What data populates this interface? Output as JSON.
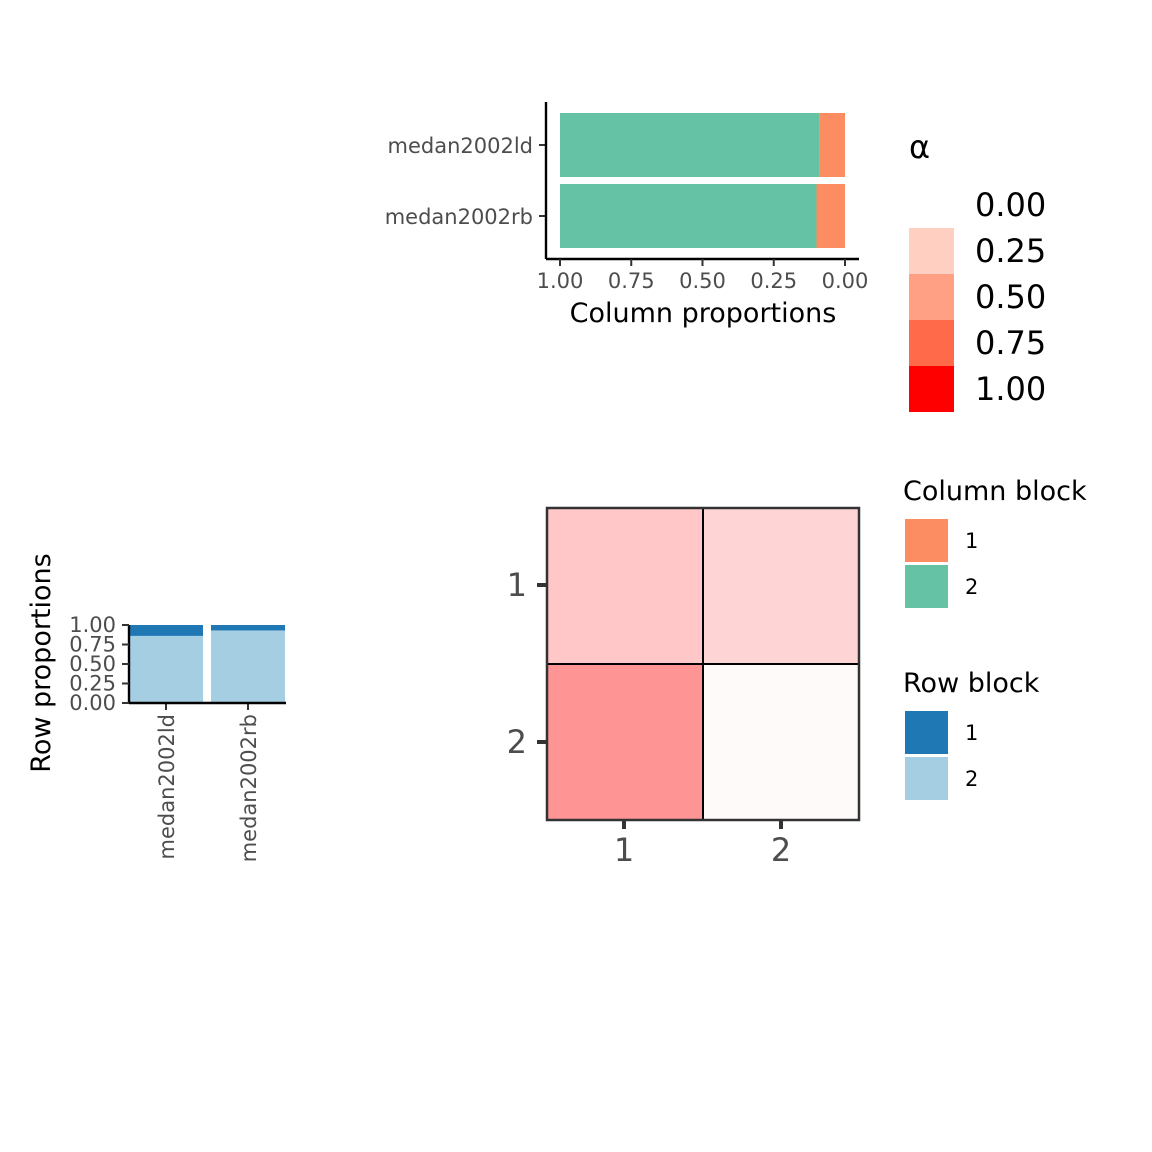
{
  "chart_data": [
    {
      "id": "column-proportions",
      "type": "bar",
      "orientation": "horizontal",
      "stacked": true,
      "categories": [
        "medan2002ld",
        "medan2002rb"
      ],
      "series": [
        {
          "name": "1",
          "values": [
            0.09,
            0.1
          ],
          "color": "#FC8D62"
        },
        {
          "name": "2",
          "values": [
            0.91,
            0.9
          ],
          "color": "#66C2A5"
        }
      ],
      "xlabel": "Column proportions",
      "xlim": [
        1.0,
        0.0
      ],
      "xticks": [
        "1.00",
        "0.75",
        "0.50",
        "0.25",
        "0.00"
      ],
      "xtick_values": [
        1.0,
        0.75,
        0.5,
        0.25,
        0.0
      ],
      "x_reversed": true
    },
    {
      "id": "row-proportions",
      "type": "bar",
      "orientation": "vertical",
      "stacked": true,
      "categories": [
        "medan2002ld",
        "medan2002rb"
      ],
      "series": [
        {
          "name": "2",
          "values": [
            0.86,
            0.93
          ],
          "color": "#A6CEE3"
        },
        {
          "name": "1",
          "values": [
            0.14,
            0.07
          ],
          "color": "#1F78B4"
        }
      ],
      "ylabel": "Row proportions",
      "ylim": [
        0,
        1
      ],
      "yticks": [
        "0.00",
        "0.25",
        "0.50",
        "0.75",
        "1.00"
      ],
      "ytick_values": [
        0,
        0.25,
        0.5,
        0.75,
        1.0
      ]
    },
    {
      "id": "alpha-heatmap",
      "type": "heatmap",
      "xcategories": [
        "1",
        "2"
      ],
      "ycategories": [
        "1",
        "2"
      ],
      "cells": [
        {
          "row": "1",
          "col": "1",
          "value": 0.22
        },
        {
          "row": "1",
          "col": "2",
          "value": 0.17
        },
        {
          "row": "2",
          "col": "1",
          "value": 0.42
        },
        {
          "row": "2",
          "col": "2",
          "value": 0.02
        }
      ],
      "color_scale": {
        "low": "#FFFFFF",
        "high": "#FF0000",
        "limits": [
          0,
          1
        ]
      }
    }
  ],
  "legends": {
    "alpha": {
      "title": "α",
      "labels": [
        "0.00",
        "0.25",
        "0.50",
        "0.75",
        "1.00"
      ],
      "colors": [
        "#FFFFFF",
        "#FFD0C2",
        "#FFA084",
        "#FF6A4A",
        "#FF0000"
      ]
    },
    "column_block": {
      "title": "Column block",
      "items": [
        {
          "label": "1",
          "color": "#FC8D62"
        },
        {
          "label": "2",
          "color": "#66C2A5"
        }
      ]
    },
    "row_block": {
      "title": "Row block",
      "items": [
        {
          "label": "1",
          "color": "#1F78B4"
        },
        {
          "label": "2",
          "color": "#A6CEE3"
        }
      ]
    }
  }
}
